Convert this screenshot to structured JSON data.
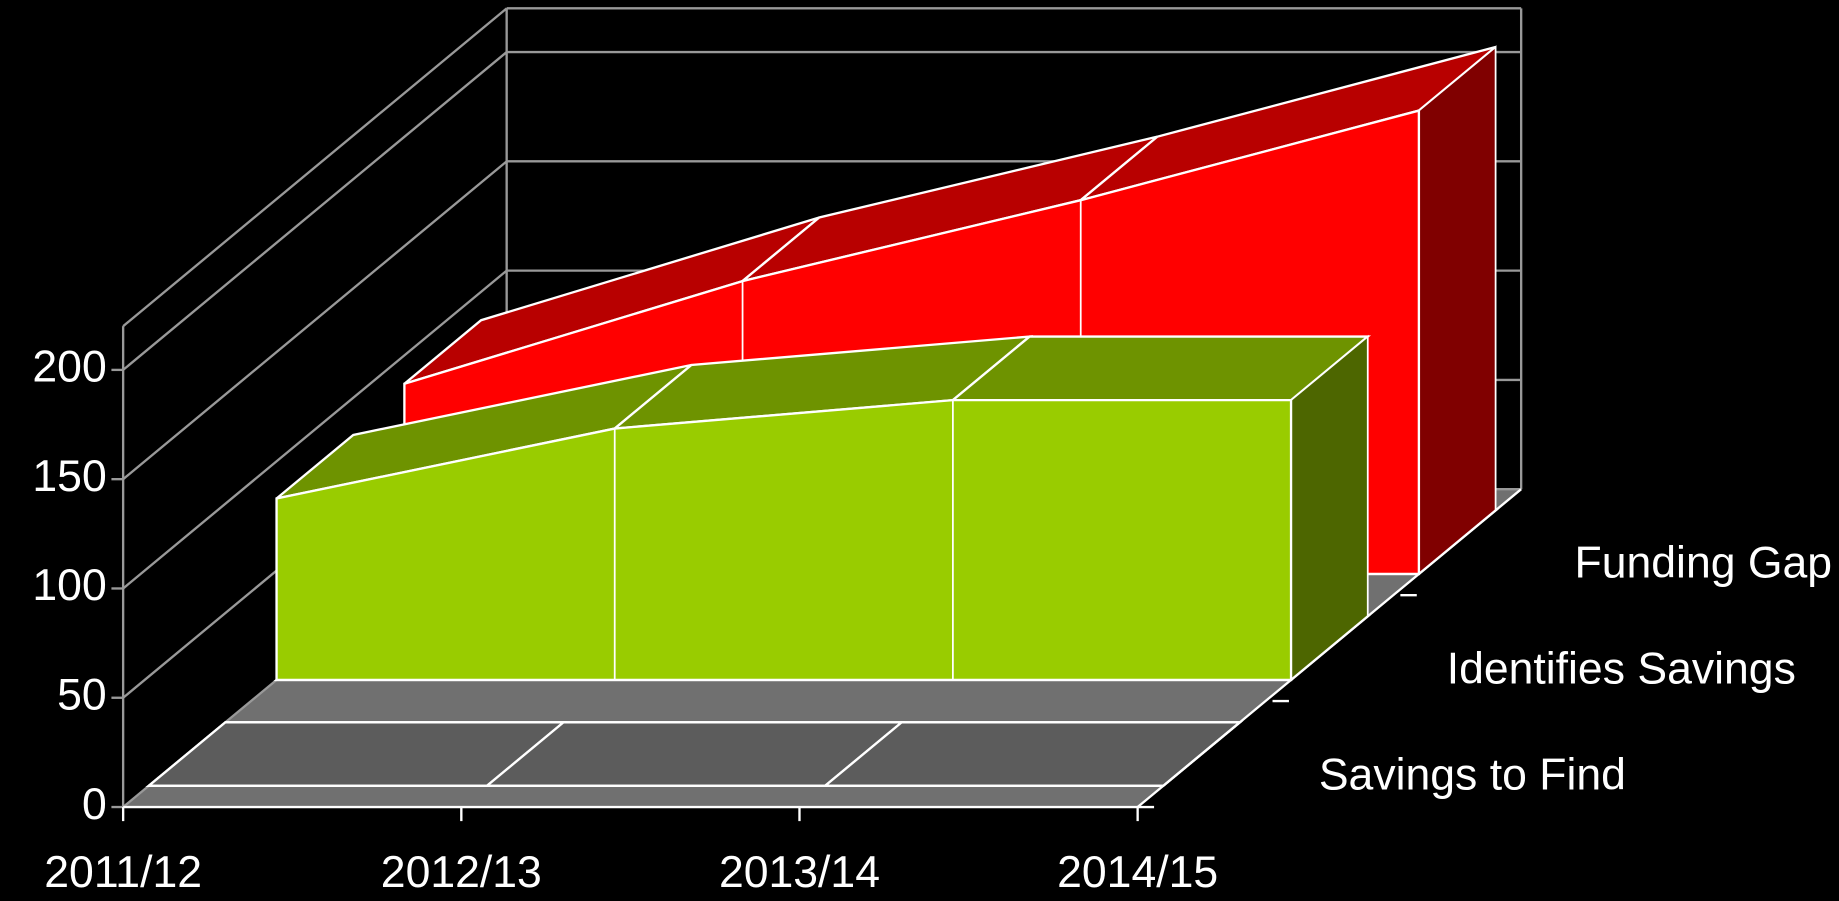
{
  "chart_data": {
    "type": "area3d",
    "categories": [
      "2011/12",
      "2012/13",
      "2013/14",
      "2014/15"
    ],
    "series": [
      {
        "name": "Savings to Find",
        "color": "#808080",
        "values": [
          0,
          0,
          0,
          0
        ]
      },
      {
        "name": "Identifies Savings",
        "color": "#99cc00",
        "values": [
          83,
          115,
          128,
          128
        ]
      },
      {
        "name": "Funding Gap",
        "color": "#ff0000",
        "values": [
          87,
          134,
          171,
          212
        ]
      }
    ],
    "ylim": [
      0,
      220
    ],
    "yticks": [
      0,
      50,
      100,
      150,
      200
    ],
    "grid": true
  }
}
